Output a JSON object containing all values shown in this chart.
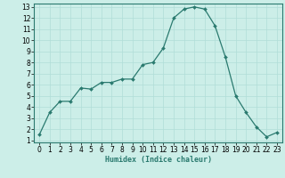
{
  "x": [
    0,
    1,
    2,
    3,
    4,
    5,
    6,
    7,
    8,
    9,
    10,
    11,
    12,
    13,
    14,
    15,
    16,
    17,
    18,
    19,
    20,
    21,
    22,
    23
  ],
  "y": [
    1.5,
    3.5,
    4.5,
    4.5,
    5.7,
    5.6,
    6.2,
    6.2,
    6.5,
    6.5,
    7.8,
    8.0,
    9.3,
    12.0,
    12.8,
    13.0,
    12.8,
    11.3,
    8.5,
    5.0,
    3.5,
    2.2,
    1.3,
    1.7
  ],
  "line_color": "#2a7a6f",
  "marker": "D",
  "marker_size": 2.0,
  "bg_color": "#cceee8",
  "grid_color": "#b0ddd8",
  "xlabel": "Humidex (Indice chaleur)",
  "ylim_min": 0.8,
  "ylim_max": 13.3,
  "xlim_min": -0.5,
  "xlim_max": 23.5,
  "yticks": [
    1,
    2,
    3,
    4,
    5,
    6,
    7,
    8,
    9,
    10,
    11,
    12,
    13
  ],
  "xticks": [
    0,
    1,
    2,
    3,
    4,
    5,
    6,
    7,
    8,
    9,
    10,
    11,
    12,
    13,
    14,
    15,
    16,
    17,
    18,
    19,
    20,
    21,
    22,
    23
  ],
  "xlabel_fontsize": 6.0,
  "tick_fontsize": 5.5,
  "linewidth": 0.9
}
